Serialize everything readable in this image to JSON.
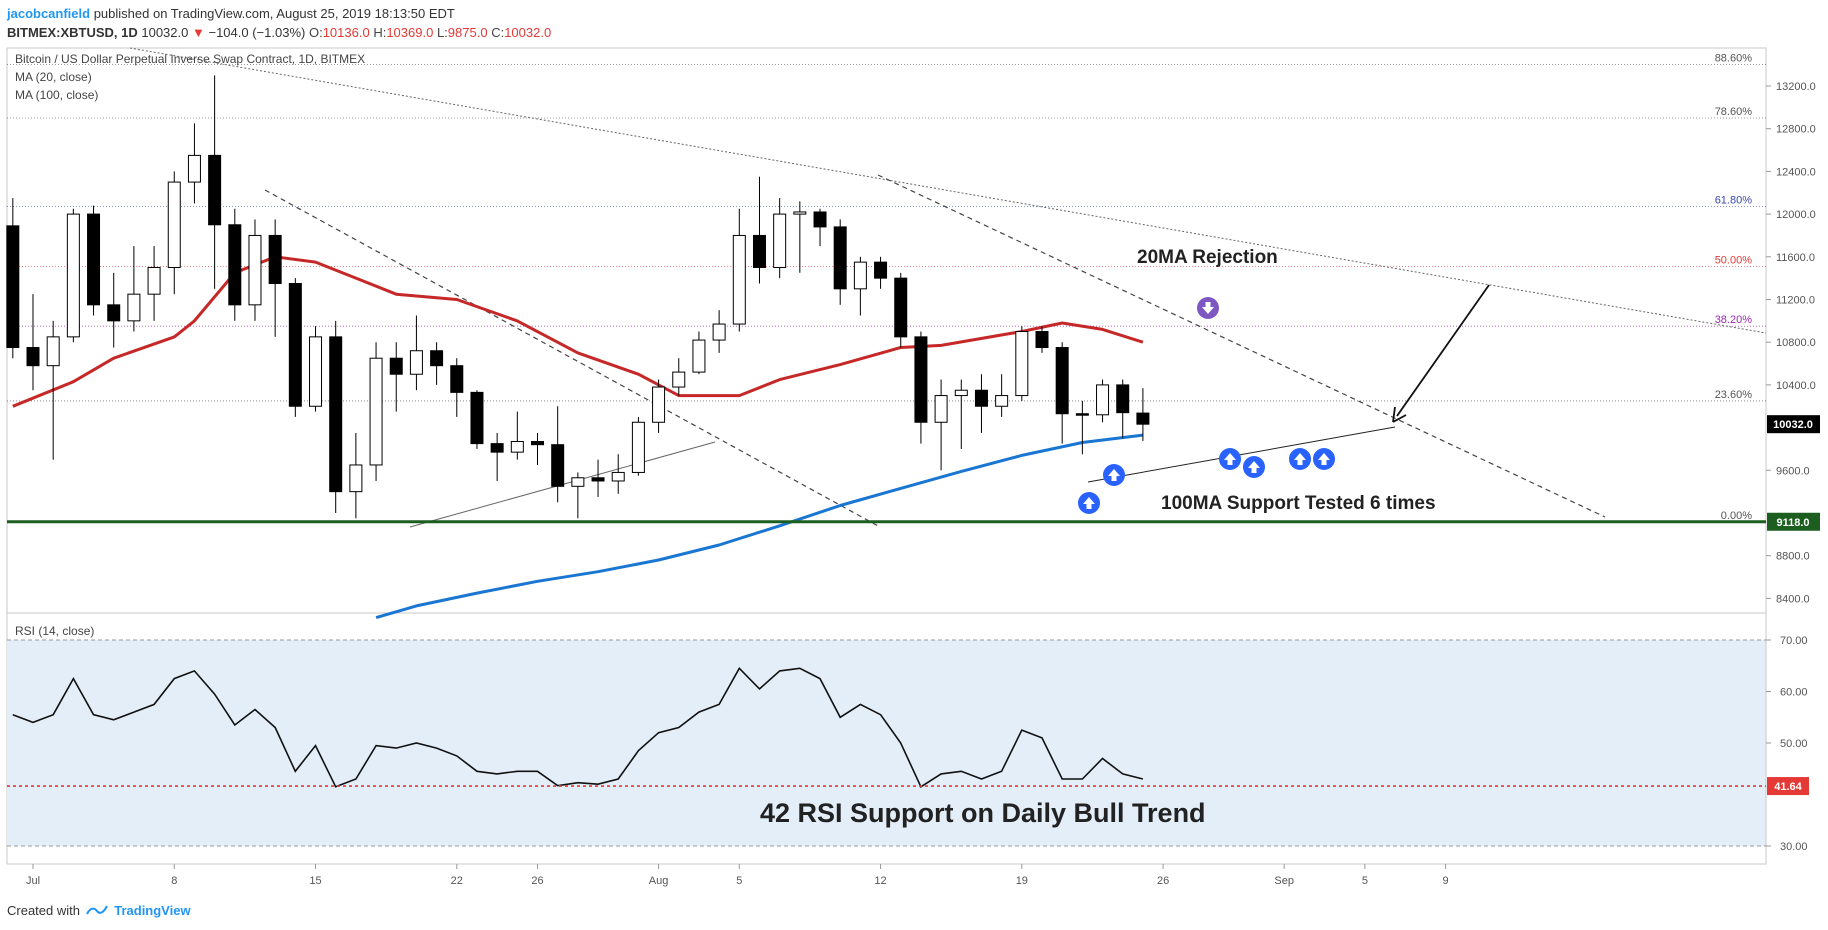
{
  "header": {
    "author": "jacobcanfield",
    "published": "published on TradingView.com, August 25, 2019 18:13:50 EDT",
    "symbol": "BITMEX:XBTUSD, 1D",
    "last": "10032.0",
    "change": "−104.0 (−1.03%)",
    "o_label": "O:",
    "o": "10136.0",
    "h_label": "H:",
    "h": "10369.0",
    "l_label": "L:",
    "l": "9875.0",
    "c_label": "C:",
    "c": "10032.0"
  },
  "footer": {
    "created_with": "Created with",
    "brand": "TradingView"
  },
  "colors": {
    "up_candle": "#ffffff",
    "down_candle": "#000000",
    "ma20": "#c62828",
    "ma100": "#1976d2",
    "support": "#1b5e20",
    "rsi_band": "#e3eef9",
    "rsi_support": "#e53935",
    "arrow_up": "#2962ff",
    "arrow_down": "#7e57c2"
  },
  "chart_data": [
    {
      "type": "candlestick",
      "title": "Bitcoin / US Dollar Perpetual Inverse Swap Contract, 1D, BITMEX",
      "indicators": [
        "MA (20, close)",
        "MA (100, close)"
      ],
      "x_ticks": [
        "Jul",
        "8",
        "15",
        "22",
        "26",
        "Aug",
        "5",
        "12",
        "19",
        "26",
        "Sep",
        "5",
        "9"
      ],
      "y_ticks": [
        "13200.0",
        "12800.0",
        "12400.0",
        "12000.0",
        "11600.0",
        "11200.0",
        "10800.0",
        "10400.0",
        "9600.0",
        "8800.0",
        "8400.0"
      ],
      "ylim": [
        8250,
        13500
      ],
      "candles": [
        {
          "date": "Jun 30",
          "o": 11890,
          "h": 12150,
          "l": 10650,
          "c": 10750
        },
        {
          "date": "Jul 1",
          "o": 10750,
          "h": 11250,
          "l": 10350,
          "c": 10580
        },
        {
          "date": "Jul 2",
          "o": 10580,
          "h": 11000,
          "l": 9700,
          "c": 10850
        },
        {
          "date": "Jul 3",
          "o": 10850,
          "h": 12050,
          "l": 10800,
          "c": 12000
        },
        {
          "date": "Jul 4",
          "o": 12000,
          "h": 12080,
          "l": 11050,
          "c": 11150
        },
        {
          "date": "Jul 5",
          "o": 11150,
          "h": 11450,
          "l": 10750,
          "c": 11000
        },
        {
          "date": "Jul 6",
          "o": 11000,
          "h": 11700,
          "l": 10900,
          "c": 11250
        },
        {
          "date": "Jul 7",
          "o": 11250,
          "h": 11700,
          "l": 11000,
          "c": 11500
        },
        {
          "date": "Jul 8",
          "o": 11500,
          "h": 12400,
          "l": 11250,
          "c": 12300
        },
        {
          "date": "Jul 9",
          "o": 12300,
          "h": 12850,
          "l": 12100,
          "c": 12550
        },
        {
          "date": "Jul 10",
          "o": 12550,
          "h": 13300,
          "l": 11300,
          "c": 11900
        },
        {
          "date": "Jul 11",
          "o": 11900,
          "h": 12050,
          "l": 11000,
          "c": 11150
        },
        {
          "date": "Jul 12",
          "o": 11150,
          "h": 11950,
          "l": 11000,
          "c": 11800
        },
        {
          "date": "Jul 13",
          "o": 11800,
          "h": 11950,
          "l": 10850,
          "c": 11350
        },
        {
          "date": "Jul 14",
          "o": 11350,
          "h": 11400,
          "l": 10100,
          "c": 10200
        },
        {
          "date": "Jul 15",
          "o": 10200,
          "h": 10950,
          "l": 10150,
          "c": 10850
        },
        {
          "date": "Jul 16",
          "o": 10850,
          "h": 11000,
          "l": 9200,
          "c": 9400
        },
        {
          "date": "Jul 17",
          "o": 9400,
          "h": 9950,
          "l": 9150,
          "c": 9650
        },
        {
          "date": "Jul 18",
          "o": 9650,
          "h": 10800,
          "l": 9500,
          "c": 10650
        },
        {
          "date": "Jul 19",
          "o": 10650,
          "h": 10800,
          "l": 10150,
          "c": 10500
        },
        {
          "date": "Jul 20",
          "o": 10500,
          "h": 11050,
          "l": 10350,
          "c": 10720
        },
        {
          "date": "Jul 21",
          "o": 10720,
          "h": 10800,
          "l": 10400,
          "c": 10580
        },
        {
          "date": "Jul 22",
          "o": 10580,
          "h": 10650,
          "l": 10100,
          "c": 10330
        },
        {
          "date": "Jul 23",
          "o": 10330,
          "h": 10350,
          "l": 9800,
          "c": 9850
        },
        {
          "date": "Jul 24",
          "o": 9850,
          "h": 9950,
          "l": 9500,
          "c": 9770
        },
        {
          "date": "Jul 25",
          "o": 9770,
          "h": 10150,
          "l": 9700,
          "c": 9870
        },
        {
          "date": "Jul 26",
          "o": 9870,
          "h": 9950,
          "l": 9650,
          "c": 9840
        },
        {
          "date": "Jul 27",
          "o": 9840,
          "h": 10200,
          "l": 9300,
          "c": 9450
        },
        {
          "date": "Jul 28",
          "o": 9450,
          "h": 9580,
          "l": 9150,
          "c": 9530
        },
        {
          "date": "Jul 29",
          "o": 9530,
          "h": 9700,
          "l": 9350,
          "c": 9500
        },
        {
          "date": "Jul 30",
          "o": 9500,
          "h": 9750,
          "l": 9380,
          "c": 9580
        },
        {
          "date": "Jul 31",
          "o": 9580,
          "h": 10100,
          "l": 9550,
          "c": 10050
        },
        {
          "date": "Aug 1",
          "o": 10050,
          "h": 10450,
          "l": 9950,
          "c": 10380
        },
        {
          "date": "Aug 2",
          "o": 10380,
          "h": 10650,
          "l": 10300,
          "c": 10520
        },
        {
          "date": "Aug 3",
          "o": 10520,
          "h": 10900,
          "l": 10500,
          "c": 10820
        },
        {
          "date": "Aug 4",
          "o": 10820,
          "h": 11100,
          "l": 10700,
          "c": 10970
        },
        {
          "date": "Aug 5",
          "o": 10970,
          "h": 12050,
          "l": 10900,
          "c": 11800
        },
        {
          "date": "Aug 6",
          "o": 11800,
          "h": 12350,
          "l": 11350,
          "c": 11500
        },
        {
          "date": "Aug 7",
          "o": 11500,
          "h": 12150,
          "l": 11400,
          "c": 12000
        },
        {
          "date": "Aug 8",
          "o": 12000,
          "h": 12120,
          "l": 11450,
          "c": 12020
        },
        {
          "date": "Aug 9",
          "o": 12020,
          "h": 12050,
          "l": 11700,
          "c": 11880
        },
        {
          "date": "Aug 10",
          "o": 11880,
          "h": 11950,
          "l": 11150,
          "c": 11300
        },
        {
          "date": "Aug 11",
          "o": 11300,
          "h": 11600,
          "l": 11050,
          "c": 11550
        },
        {
          "date": "Aug 12",
          "o": 11550,
          "h": 11600,
          "l": 11300,
          "c": 11400
        },
        {
          "date": "Aug 13",
          "o": 11400,
          "h": 11450,
          "l": 10750,
          "c": 10850
        },
        {
          "date": "Aug 14",
          "o": 10850,
          "h": 10900,
          "l": 9850,
          "c": 10050
        },
        {
          "date": "Aug 15",
          "o": 10050,
          "h": 10450,
          "l": 9600,
          "c": 10300
        },
        {
          "date": "Aug 16",
          "o": 10300,
          "h": 10450,
          "l": 9800,
          "c": 10350
        },
        {
          "date": "Aug 17",
          "o": 10350,
          "h": 10500,
          "l": 9950,
          "c": 10200
        },
        {
          "date": "Aug 18",
          "o": 10200,
          "h": 10500,
          "l": 10100,
          "c": 10300
        },
        {
          "date": "Aug 19",
          "o": 10300,
          "h": 10950,
          "l": 10250,
          "c": 10900
        },
        {
          "date": "Aug 20",
          "o": 10900,
          "h": 10950,
          "l": 10700,
          "c": 10750
        },
        {
          "date": "Aug 21",
          "o": 10750,
          "h": 10800,
          "l": 9850,
          "c": 10130
        },
        {
          "date": "Aug 22",
          "o": 10130,
          "h": 10250,
          "l": 9750,
          "c": 10120
        },
        {
          "date": "Aug 23",
          "o": 10120,
          "h": 10450,
          "l": 10050,
          "c": 10400
        },
        {
          "date": "Aug 24",
          "o": 10400,
          "h": 10450,
          "l": 9900,
          "c": 10140
        },
        {
          "date": "Aug 25",
          "o": 10136,
          "h": 10369,
          "l": 9875,
          "c": 10032
        }
      ],
      "ma20": [
        {
          "date": "Jun 30",
          "v": 10200
        },
        {
          "date": "Jul 3",
          "v": 10430
        },
        {
          "date": "Jul 5",
          "v": 10650
        },
        {
          "date": "Jul 8",
          "v": 10850
        },
        {
          "date": "Jul 9",
          "v": 11000
        },
        {
          "date": "Jul 11",
          "v": 11450
        },
        {
          "date": "Jul 13",
          "v": 11600
        },
        {
          "date": "Jul 15",
          "v": 11550
        },
        {
          "date": "Jul 17",
          "v": 11400
        },
        {
          "date": "Jul 19",
          "v": 11250
        },
        {
          "date": "Jul 22",
          "v": 11200
        },
        {
          "date": "Jul 25",
          "v": 11000
        },
        {
          "date": "Jul 28",
          "v": 10700
        },
        {
          "date": "Jul 31",
          "v": 10500
        },
        {
          "date": "Aug 2",
          "v": 10300
        },
        {
          "date": "Aug 5",
          "v": 10300
        },
        {
          "date": "Aug 7",
          "v": 10450
        },
        {
          "date": "Aug 10",
          "v": 10590
        },
        {
          "date": "Aug 13",
          "v": 10750
        },
        {
          "date": "Aug 15",
          "v": 10770
        },
        {
          "date": "Aug 19",
          "v": 10900
        },
        {
          "date": "Aug 21",
          "v": 10980
        },
        {
          "date": "Aug 23",
          "v": 10920
        },
        {
          "date": "Aug 25",
          "v": 10800
        }
      ],
      "ma100": [
        {
          "date": "Jul 18",
          "v": 8220
        },
        {
          "date": "Jul 20",
          "v": 8330
        },
        {
          "date": "Jul 23",
          "v": 8450
        },
        {
          "date": "Jul 26",
          "v": 8560
        },
        {
          "date": "Jul 29",
          "v": 8650
        },
        {
          "date": "Aug 1",
          "v": 8760
        },
        {
          "date": "Aug 4",
          "v": 8900
        },
        {
          "date": "Aug 7",
          "v": 9080
        },
        {
          "date": "Aug 10",
          "v": 9270
        },
        {
          "date": "Aug 13",
          "v": 9430
        },
        {
          "date": "Aug 16",
          "v": 9590
        },
        {
          "date": "Aug 19",
          "v": 9740
        },
        {
          "date": "Aug 22",
          "v": 9860
        },
        {
          "date": "Aug 25",
          "v": 9930
        }
      ],
      "fibonacci": [
        {
          "label": "88.60%",
          "price": 13400,
          "color": "#555555"
        },
        {
          "label": "78.60%",
          "price": 12900,
          "color": "#555555"
        },
        {
          "label": "61.80%",
          "price": 12070,
          "color": "#3949ab"
        },
        {
          "label": "50.00%",
          "price": 11510,
          "color": "#e53935"
        },
        {
          "label": "38.20%",
          "price": 10950,
          "color": "#9c27b0"
        },
        {
          "label": "23.60%",
          "price": 10250,
          "color": "#555555"
        },
        {
          "label": "0.00%",
          "price": 9118,
          "color": "#555555"
        }
      ],
      "price_labels": [
        {
          "text": "10032.0",
          "price": 10032,
          "bg": "#000000"
        },
        {
          "text": "9118.0",
          "price": 9118,
          "bg": "#1b5e20"
        }
      ],
      "annotations": [
        "20MA Rejection",
        "100MA Support Tested 6 times"
      ]
    },
    {
      "type": "line",
      "title": "RSI (14, close)",
      "y_ticks": [
        "70.00",
        "60.00",
        "50.00",
        "30.00"
      ],
      "ylim": [
        27,
        74
      ],
      "band": [
        30,
        70
      ],
      "support_value": 41.64,
      "support_label": "41.64",
      "annotation": "42 RSI Support on Daily Bull Trend",
      "points": [
        {
          "date": "Jun 30",
          "v": 55.5
        },
        {
          "date": "Jul 1",
          "v": 54
        },
        {
          "date": "Jul 2",
          "v": 55.5
        },
        {
          "date": "Jul 3",
          "v": 62.5
        },
        {
          "date": "Jul 4",
          "v": 55.5
        },
        {
          "date": "Jul 5",
          "v": 54.5
        },
        {
          "date": "Jul 6",
          "v": 56
        },
        {
          "date": "Jul 7",
          "v": 57.5
        },
        {
          "date": "Jul 8",
          "v": 62.5
        },
        {
          "date": "Jul 9",
          "v": 64
        },
        {
          "date": "Jul 10",
          "v": 59.5
        },
        {
          "date": "Jul 11",
          "v": 53.5
        },
        {
          "date": "Jul 12",
          "v": 56.5
        },
        {
          "date": "Jul 13",
          "v": 53
        },
        {
          "date": "Jul 14",
          "v": 44.5
        },
        {
          "date": "Jul 15",
          "v": 49.5
        },
        {
          "date": "Jul 16",
          "v": 41.5
        },
        {
          "date": "Jul 17",
          "v": 43
        },
        {
          "date": "Jul 18",
          "v": 49.5
        },
        {
          "date": "Jul 19",
          "v": 49
        },
        {
          "date": "Jul 20",
          "v": 50
        },
        {
          "date": "Jul 21",
          "v": 49
        },
        {
          "date": "Jul 22",
          "v": 47.5
        },
        {
          "date": "Jul 23",
          "v": 44.5
        },
        {
          "date": "Jul 24",
          "v": 44
        },
        {
          "date": "Jul 25",
          "v": 44.5
        },
        {
          "date": "Jul 26",
          "v": 44.5
        },
        {
          "date": "Jul 27",
          "v": 41.7
        },
        {
          "date": "Jul 28",
          "v": 42.3
        },
        {
          "date": "Jul 29",
          "v": 42
        },
        {
          "date": "Jul 30",
          "v": 43
        },
        {
          "date": "Jul 31",
          "v": 48.5
        },
        {
          "date": "Aug 1",
          "v": 52
        },
        {
          "date": "Aug 2",
          "v": 53
        },
        {
          "date": "Aug 3",
          "v": 56
        },
        {
          "date": "Aug 4",
          "v": 57.5
        },
        {
          "date": "Aug 5",
          "v": 64.5
        },
        {
          "date": "Aug 6",
          "v": 60.5
        },
        {
          "date": "Aug 7",
          "v": 64
        },
        {
          "date": "Aug 8",
          "v": 64.5
        },
        {
          "date": "Aug 9",
          "v": 62.5
        },
        {
          "date": "Aug 10",
          "v": 55
        },
        {
          "date": "Aug 11",
          "v": 57.5
        },
        {
          "date": "Aug 12",
          "v": 55.5
        },
        {
          "date": "Aug 13",
          "v": 50
        },
        {
          "date": "Aug 14",
          "v": 41.5
        },
        {
          "date": "Aug 15",
          "v": 44
        },
        {
          "date": "Aug 16",
          "v": 44.5
        },
        {
          "date": "Aug 17",
          "v": 43
        },
        {
          "date": "Aug 18",
          "v": 44.5
        },
        {
          "date": "Aug 19",
          "v": 52.5
        },
        {
          "date": "Aug 20",
          "v": 51
        },
        {
          "date": "Aug 21",
          "v": 43
        },
        {
          "date": "Aug 22",
          "v": 43
        },
        {
          "date": "Aug 23",
          "v": 47
        },
        {
          "date": "Aug 24",
          "v": 44
        },
        {
          "date": "Aug 25",
          "v": 43
        }
      ]
    }
  ]
}
